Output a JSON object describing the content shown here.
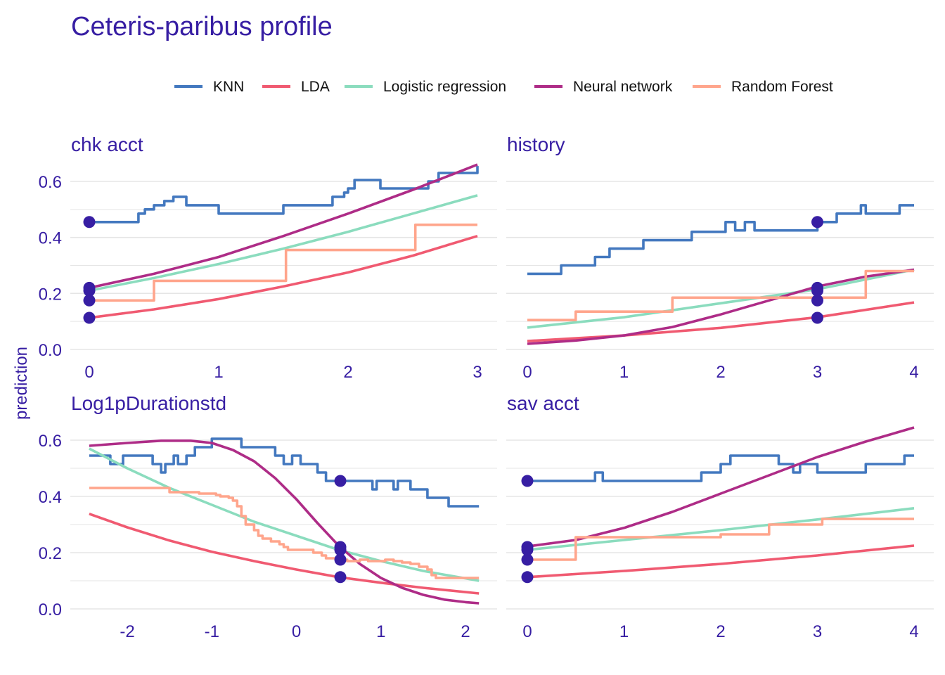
{
  "title": "Ceteris-paribus profile",
  "y_axis_label": "prediction",
  "colors": {
    "text": "#371ea3",
    "grid": "#e5e5e5",
    "point": "#371ea3"
  },
  "legend": [
    {
      "name": "KNN",
      "color": "#4378bf"
    },
    {
      "name": "LDA",
      "color": "#f05a71"
    },
    {
      "name": "Logistic regression",
      "color": "#8bdcbe"
    },
    {
      "name": "Neural network",
      "color": "#ae2c87"
    },
    {
      "name": "Random Forest",
      "color": "#ffa58c"
    }
  ],
  "chart_data": [
    {
      "type": "line",
      "panel": "chk_acct",
      "title": "chk  acct",
      "xlim": [
        -0.1,
        3.0
      ],
      "ylim": [
        0,
        0.66
      ],
      "x_ticks": [
        0,
        1,
        2,
        3
      ],
      "x_tick_labels": [
        "0",
        "1",
        "2",
        "3"
      ],
      "y_ticks": [
        0,
        0.2,
        0.4,
        0.6
      ],
      "y_tick_labels": [
        "0.0",
        "0.2",
        "0.4",
        "0.6"
      ],
      "series": [
        {
          "name": "KNN",
          "step": true,
          "x": [
            0,
            0.38,
            0.43,
            0.5,
            0.58,
            0.65,
            0.75,
            0.88,
            1.0,
            1.25,
            1.5,
            1.75,
            1.88,
            1.95,
            1.97,
            2.0,
            2.05,
            2.25,
            2.5,
            2.62,
            2.7,
            2.85,
            3.0
          ],
          "y": [
            0.455,
            0.485,
            0.5,
            0.515,
            0.53,
            0.545,
            0.515,
            0.515,
            0.485,
            0.485,
            0.515,
            0.515,
            0.545,
            0.545,
            0.56,
            0.575,
            0.605,
            0.575,
            0.575,
            0.6,
            0.63,
            0.63,
            0.655
          ]
        },
        {
          "name": "LDA",
          "x": [
            0,
            0.5,
            1.0,
            1.5,
            2.0,
            2.5,
            3.0
          ],
          "y": [
            0.113,
            0.143,
            0.18,
            0.225,
            0.275,
            0.335,
            0.405
          ]
        },
        {
          "name": "Logistic regression",
          "x": [
            0,
            0.5,
            1.0,
            1.5,
            2.0,
            2.5,
            3.0
          ],
          "y": [
            0.21,
            0.255,
            0.305,
            0.36,
            0.42,
            0.485,
            0.55
          ]
        },
        {
          "name": "Neural network",
          "x": [
            0,
            0.5,
            1.0,
            1.5,
            2.0,
            2.5,
            3.0
          ],
          "y": [
            0.22,
            0.27,
            0.33,
            0.405,
            0.485,
            0.57,
            0.66
          ]
        },
        {
          "name": "Random Forest",
          "step": true,
          "x": [
            0,
            0.5,
            1.52,
            2.52,
            3.0
          ],
          "y": [
            0.175,
            0.245,
            0.355,
            0.445,
            0.445
          ]
        }
      ],
      "points": {
        "x": 0,
        "y": [
          0.455,
          0.113,
          0.175,
          0.21,
          0.22
        ]
      }
    },
    {
      "type": "line",
      "panel": "history",
      "title": "history",
      "xlim": [
        -0.1,
        4.0
      ],
      "ylim": [
        0,
        0.66
      ],
      "x_ticks": [
        0,
        1,
        2,
        3,
        4
      ],
      "x_tick_labels": [
        "0",
        "1",
        "2",
        "3",
        "4"
      ],
      "y_ticks": [
        0,
        0.2,
        0.4,
        0.6
      ],
      "y_tick_labels": [],
      "series": [
        {
          "name": "KNN",
          "step": true,
          "x": [
            0,
            0.35,
            0.6,
            0.7,
            0.85,
            1.0,
            1.2,
            1.4,
            1.7,
            2.05,
            2.15,
            2.2,
            2.25,
            2.35,
            2.5,
            3.0,
            3.05,
            3.2,
            3.45,
            3.5,
            3.85,
            4.0
          ],
          "y": [
            0.27,
            0.3,
            0.3,
            0.33,
            0.36,
            0.36,
            0.39,
            0.39,
            0.42,
            0.455,
            0.425,
            0.425,
            0.455,
            0.425,
            0.425,
            0.455,
            0.455,
            0.485,
            0.515,
            0.485,
            0.515,
            0.515
          ]
        },
        {
          "name": "LDA",
          "x": [
            0,
            1,
            2,
            3,
            4
          ],
          "y": [
            0.03,
            0.05,
            0.077,
            0.115,
            0.168
          ]
        },
        {
          "name": "Logistic regression",
          "x": [
            0,
            1,
            2,
            3,
            4
          ],
          "y": [
            0.078,
            0.115,
            0.165,
            0.215,
            0.285
          ]
        },
        {
          "name": "Neural network",
          "x": [
            0,
            0.5,
            1,
            1.5,
            2,
            2.5,
            3,
            3.5,
            4
          ],
          "y": [
            0.02,
            0.032,
            0.05,
            0.08,
            0.125,
            0.175,
            0.225,
            0.26,
            0.285
          ]
        },
        {
          "name": "Random Forest",
          "step": true,
          "x": [
            0,
            0.5,
            1.5,
            3.5,
            4.0
          ],
          "y": [
            0.105,
            0.135,
            0.185,
            0.28,
            0.28
          ]
        }
      ],
      "points": {
        "x": 3,
        "y": [
          0.455,
          0.113,
          0.175,
          0.21,
          0.22
        ]
      }
    },
    {
      "type": "line",
      "panel": "Log1pDurationstd",
      "title": "Log1pDurationstd",
      "xlim": [
        -2.6,
        2.16
      ],
      "ylim": [
        0,
        0.66
      ],
      "x_ticks": [
        -2,
        -1,
        0,
        1,
        2
      ],
      "x_tick_labels": [
        "-2",
        "-1",
        "0",
        "1",
        "2"
      ],
      "y_ticks": [
        0,
        0.2,
        0.4,
        0.6
      ],
      "y_tick_labels": [
        "0.0",
        "0.2",
        "0.4",
        "0.6"
      ],
      "series": [
        {
          "name": "KNN",
          "step": true,
          "x": [
            -2.45,
            -2.2,
            -2.05,
            -1.95,
            -1.7,
            -1.6,
            -1.55,
            -1.45,
            -1.4,
            -1.3,
            -1.2,
            -1.05,
            -1.0,
            -0.9,
            -0.8,
            -0.65,
            -0.45,
            -0.25,
            -0.15,
            -0.05,
            0.05,
            0.25,
            0.35,
            0.55,
            0.9,
            0.95,
            1.05,
            1.15,
            1.2,
            1.35,
            1.45,
            1.55,
            1.65,
            1.8,
            2.16
          ],
          "y": [
            0.545,
            0.515,
            0.545,
            0.545,
            0.515,
            0.485,
            0.515,
            0.545,
            0.515,
            0.545,
            0.575,
            0.575,
            0.605,
            0.605,
            0.605,
            0.575,
            0.575,
            0.545,
            0.515,
            0.545,
            0.515,
            0.485,
            0.455,
            0.455,
            0.425,
            0.455,
            0.455,
            0.425,
            0.455,
            0.425,
            0.425,
            0.395,
            0.395,
            0.365,
            0.365
          ]
        },
        {
          "name": "LDA",
          "x": [
            -2.45,
            -2,
            -1.5,
            -1,
            -0.5,
            0,
            0.5,
            1,
            1.5,
            2.16
          ],
          "y": [
            0.338,
            0.29,
            0.243,
            0.203,
            0.17,
            0.14,
            0.113,
            0.093,
            0.075,
            0.055
          ]
        },
        {
          "name": "Logistic regression",
          "x": [
            -2.45,
            -2,
            -1.5,
            -1,
            -0.5,
            0,
            0.5,
            1,
            1.5,
            2.16
          ],
          "y": [
            0.57,
            0.5,
            0.43,
            0.37,
            0.31,
            0.26,
            0.21,
            0.17,
            0.135,
            0.1
          ]
        },
        {
          "name": "Neural network",
          "x": [
            -2.45,
            -2.0,
            -1.6,
            -1.25,
            -1.0,
            -0.75,
            -0.5,
            -0.25,
            0,
            0.25,
            0.5,
            0.75,
            1.0,
            1.25,
            1.5,
            1.75,
            2.0,
            2.16
          ],
          "y": [
            0.58,
            0.59,
            0.598,
            0.598,
            0.59,
            0.565,
            0.525,
            0.465,
            0.39,
            0.305,
            0.225,
            0.16,
            0.11,
            0.075,
            0.05,
            0.033,
            0.024,
            0.02
          ]
        },
        {
          "name": "Random Forest",
          "step": true,
          "x": [
            -2.45,
            -1.5,
            -1.3,
            -1.15,
            -1.05,
            -0.95,
            -0.9,
            -0.8,
            -0.75,
            -0.7,
            -0.65,
            -0.6,
            -0.55,
            -0.5,
            -0.45,
            -0.4,
            -0.3,
            -0.2,
            -0.15,
            -0.1,
            0.05,
            0.2,
            0.3,
            0.35,
            0.5,
            0.6,
            0.75,
            0.85,
            0.95,
            1.05,
            1.15,
            1.25,
            1.35,
            1.45,
            1.55,
            1.6,
            1.65,
            2.16
          ],
          "y": [
            0.43,
            0.415,
            0.415,
            0.41,
            0.41,
            0.405,
            0.4,
            0.395,
            0.385,
            0.365,
            0.33,
            0.3,
            0.3,
            0.28,
            0.26,
            0.25,
            0.24,
            0.23,
            0.22,
            0.21,
            0.21,
            0.2,
            0.19,
            0.18,
            0.175,
            0.17,
            0.175,
            0.17,
            0.17,
            0.175,
            0.17,
            0.165,
            0.16,
            0.15,
            0.14,
            0.12,
            0.11,
            0.11
          ]
        }
      ],
      "points": {
        "x": 0.52,
        "y": [
          0.455,
          0.113,
          0.175,
          0.21,
          0.22
        ]
      }
    },
    {
      "type": "line",
      "panel": "sav_acct",
      "title": "sav  acct",
      "xlim": [
        -0.1,
        4.0
      ],
      "ylim": [
        0,
        0.66
      ],
      "x_ticks": [
        0,
        1,
        2,
        3,
        4
      ],
      "x_tick_labels": [
        "0",
        "1",
        "2",
        "3",
        "4"
      ],
      "y_ticks": [
        0,
        0.2,
        0.4,
        0.6
      ],
      "y_tick_labels": [],
      "series": [
        {
          "name": "KNN",
          "step": true,
          "x": [
            0,
            0.5,
            0.7,
            0.78,
            1.0,
            1.3,
            1.8,
            1.9,
            2.0,
            2.05,
            2.1,
            2.2,
            2.5,
            2.6,
            2.75,
            2.82,
            2.9,
            3.0,
            3.1,
            3.35,
            3.5,
            3.7,
            3.9,
            4.0
          ],
          "y": [
            0.455,
            0.455,
            0.485,
            0.455,
            0.455,
            0.455,
            0.485,
            0.485,
            0.515,
            0.515,
            0.545,
            0.545,
            0.545,
            0.515,
            0.485,
            0.515,
            0.515,
            0.485,
            0.485,
            0.485,
            0.515,
            0.515,
            0.545,
            0.545
          ]
        },
        {
          "name": "LDA",
          "x": [
            0,
            1,
            2,
            3,
            4
          ],
          "y": [
            0.113,
            0.135,
            0.16,
            0.19,
            0.225
          ]
        },
        {
          "name": "Logistic regression",
          "x": [
            0,
            1,
            2,
            3,
            4
          ],
          "y": [
            0.21,
            0.245,
            0.28,
            0.318,
            0.358
          ]
        },
        {
          "name": "Neural network",
          "x": [
            0,
            0.5,
            1,
            1.5,
            2,
            2.5,
            3,
            3.5,
            4
          ],
          "y": [
            0.222,
            0.245,
            0.288,
            0.345,
            0.41,
            0.475,
            0.54,
            0.595,
            0.645
          ]
        },
        {
          "name": "Random Forest",
          "step": true,
          "x": [
            0,
            0.5,
            2.0,
            2.5,
            3.0,
            3.05,
            4.0
          ],
          "y": [
            0.175,
            0.255,
            0.265,
            0.3,
            0.3,
            0.32,
            0.32
          ]
        }
      ],
      "points": {
        "x": 0,
        "y": [
          0.455,
          0.113,
          0.175,
          0.21,
          0.22
        ]
      }
    }
  ]
}
